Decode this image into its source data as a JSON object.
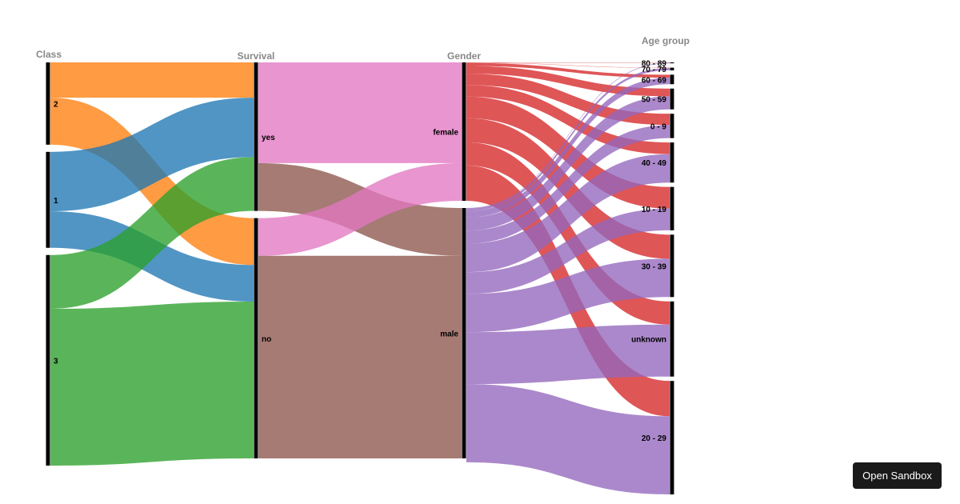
{
  "sandbox_button": {
    "label": "Open Sandbox"
  },
  "chart_data": {
    "type": "sankey",
    "title": "",
    "dimensions": [
      {
        "name": "Class",
        "categories": [
          "2",
          "1",
          "3"
        ]
      },
      {
        "name": "Survival",
        "categories": [
          "yes",
          "no"
        ]
      },
      {
        "name": "Gender",
        "categories": [
          "female",
          "male"
        ]
      },
      {
        "name": "Age group",
        "categories": [
          "80 - 89",
          "70 - 79",
          "60 - 69",
          "50 - 59",
          "0 - 9",
          "40 - 49",
          "10 - 19",
          "30 - 39",
          "unknown",
          "20 - 29"
        ]
      }
    ],
    "colors": {
      "class": {
        "2": "#ff7f0e",
        "1": "#1f77b4",
        "3": "#2ca02c"
      },
      "gender": {
        "female": "#e377c2",
        "male": "#8c564b"
      },
      "age_female": "#d62728",
      "age_male": "#9467bd"
    },
    "flows_class_survival": [
      {
        "class": "2",
        "survival": "yes",
        "count": 119
      },
      {
        "class": "2",
        "survival": "no",
        "count": 158
      },
      {
        "class": "1",
        "survival": "yes",
        "count": 200
      },
      {
        "class": "1",
        "survival": "no",
        "count": 123
      },
      {
        "class": "3",
        "survival": "yes",
        "count": 181
      },
      {
        "class": "3",
        "survival": "no",
        "count": 528
      }
    ],
    "flows_survival_gender": [
      {
        "survival": "yes",
        "gender": "female",
        "count": 339
      },
      {
        "survival": "yes",
        "gender": "male",
        "count": 161
      },
      {
        "survival": "no",
        "gender": "female",
        "count": 127
      },
      {
        "survival": "no",
        "gender": "male",
        "count": 682
      }
    ],
    "flows_gender_age": [
      {
        "gender": "female",
        "age": "80 - 89",
        "count": 1
      },
      {
        "gender": "female",
        "age": "70 - 79",
        "count": 1
      },
      {
        "gender": "female",
        "age": "60 - 69",
        "count": 10
      },
      {
        "gender": "female",
        "age": "50 - 59",
        "count": 26
      },
      {
        "gender": "female",
        "age": "0 - 9",
        "count": 38
      },
      {
        "gender": "female",
        "age": "40 - 49",
        "count": 39
      },
      {
        "gender": "female",
        "age": "10 - 19",
        "count": 73
      },
      {
        "gender": "female",
        "age": "30 - 39",
        "count": 81
      },
      {
        "gender": "female",
        "age": "unknown",
        "count": 78
      },
      {
        "gender": "female",
        "age": "20 - 29",
        "count": 119
      },
      {
        "gender": "male",
        "age": "80 - 89",
        "count": 2
      },
      {
        "gender": "male",
        "age": "70 - 79",
        "count": 8
      },
      {
        "gender": "male",
        "age": "60 - 69",
        "count": 22
      },
      {
        "gender": "male",
        "age": "50 - 59",
        "count": 44
      },
      {
        "gender": "male",
        "age": "0 - 9",
        "count": 44
      },
      {
        "gender": "male",
        "age": "40 - 49",
        "count": 96
      },
      {
        "gender": "male",
        "age": "10 - 19",
        "count": 73
      },
      {
        "gender": "male",
        "age": "30 - 39",
        "count": 129
      },
      {
        "gender": "male",
        "age": "unknown",
        "count": 175
      },
      {
        "gender": "male",
        "age": "20 - 29",
        "count": 263
      }
    ]
  }
}
